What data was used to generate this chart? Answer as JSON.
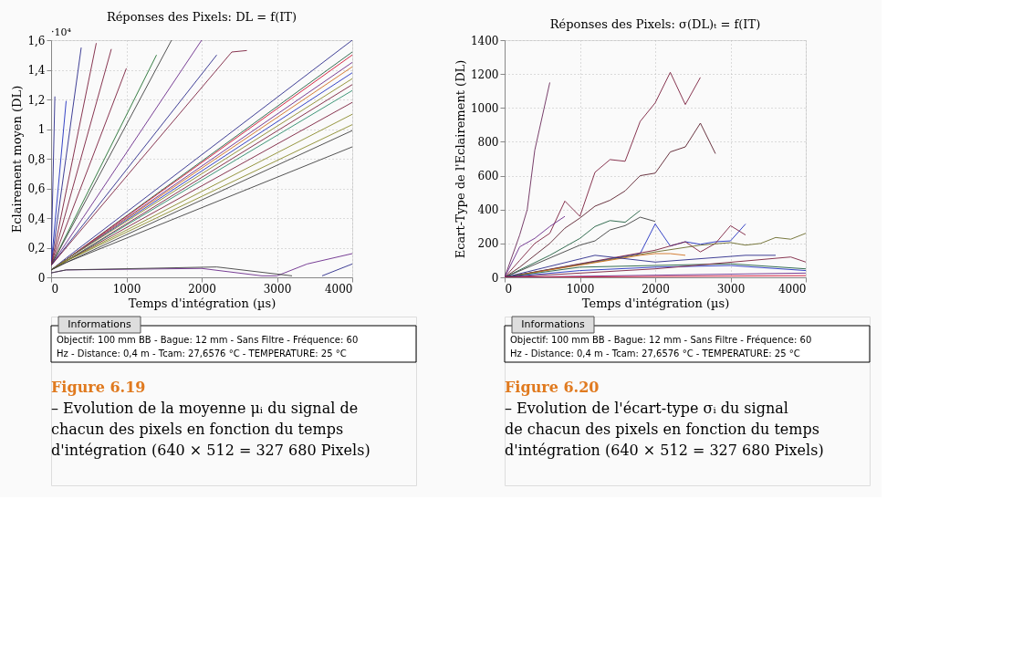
{
  "chart_data": [
    {
      "type": "line",
      "title": "Réponses des Pixels: DL = f(IT)",
      "xlabel": "Temps d'intégration (µs)",
      "ylabel": "Eclairement moyen (DL)",
      "xlim": [
        0,
        4000
      ],
      "xticks": [
        0,
        1000,
        2000,
        3000,
        4000
      ],
      "ylim": [
        0,
        1.6
      ],
      "yticks": [
        {
          "value": 0,
          "label": "0"
        },
        {
          "value": 0.2,
          "label": "0,2"
        },
        {
          "value": 0.4,
          "label": "0,4"
        },
        {
          "value": 0.6,
          "label": "0,6"
        },
        {
          "value": 0.8,
          "label": "0,8"
        },
        {
          "value": 1,
          "label": "1"
        },
        {
          "value": 1.2,
          "label": "1,2"
        },
        {
          "value": 1.4,
          "label": "1,4"
        },
        {
          "value": 1.6,
          "label": "1,6"
        }
      ],
      "grid": true,
      "line_style": "solid",
      "marker": "none",
      "legend": false,
      "annotations": [
        "·10⁴",
        "Informations",
        "Objectif: 100 mm BB - Bague: 12 mm - Sans Filtre - Fréquence: 60 Hz - Distance: 0,4 m - Tcam: 27,6576 °C - TEMPERATURE: 25 °C",
        "Figure 6.19",
        "– Evolution de la moyenne μᵢ du signal de chacun des pixels en fonction du temps d'intégration (640 × 512 = 327 680 Pixels)"
      ],
      "series": [
        {
          "color": "#2a2a8a",
          "x": [
            0,
            200,
            4000
          ],
          "values": [
            0.05,
            0.13,
            1.6
          ]
        },
        {
          "color": "#1f5f3f",
          "x": [
            0,
            200,
            4000
          ],
          "values": [
            0.05,
            0.12,
            1.52
          ]
        },
        {
          "color": "#d01030",
          "x": [
            0,
            200,
            4000
          ],
          "values": [
            0.05,
            0.12,
            1.5
          ]
        },
        {
          "color": "#6a2a8a",
          "x": [
            0,
            200,
            4000
          ],
          "values": [
            0.05,
            0.12,
            1.45
          ]
        },
        {
          "color": "#d07020",
          "x": [
            0,
            200,
            4000
          ],
          "values": [
            0.05,
            0.12,
            1.42
          ]
        },
        {
          "color": "#2030c0",
          "x": [
            0,
            200,
            4000
          ],
          "values": [
            0.05,
            0.12,
            1.38
          ]
        },
        {
          "color": "#8a8a2a",
          "x": [
            0,
            200,
            4000
          ],
          "values": [
            0.05,
            0.12,
            1.34
          ]
        },
        {
          "color": "#7a1f3d",
          "x": [
            0,
            200,
            4000
          ],
          "values": [
            0.05,
            0.11,
            1.3
          ]
        },
        {
          "color": "#2a8a6a",
          "x": [
            0,
            200,
            4000
          ],
          "values": [
            0.05,
            0.11,
            1.26
          ]
        },
        {
          "color": "#7a1f3d",
          "x": [
            0,
            200,
            4000
          ],
          "values": [
            0.05,
            0.11,
            1.18
          ]
        },
        {
          "color": "#8a8a2a",
          "x": [
            0,
            200,
            4000
          ],
          "values": [
            0.05,
            0.11,
            1.1
          ]
        },
        {
          "color": "#8a8a2a",
          "x": [
            0,
            200,
            4000
          ],
          "values": [
            0.05,
            0.11,
            1.03
          ]
        },
        {
          "color": "#404040",
          "x": [
            0,
            200,
            4000
          ],
          "values": [
            0.05,
            0.1,
            0.99
          ]
        },
        {
          "color": "#404040",
          "x": [
            0,
            200,
            4000
          ],
          "values": [
            0.05,
            0.1,
            0.88
          ]
        },
        {
          "color": "#2a2a8a",
          "x": [
            0,
            50
          ],
          "values": [
            0.1,
            1.22
          ]
        },
        {
          "color": "#2030c0",
          "x": [
            0,
            200
          ],
          "values": [
            0.08,
            1.19
          ]
        },
        {
          "color": "#2a2a8a",
          "x": [
            0,
            400
          ],
          "values": [
            0.08,
            1.55
          ]
        },
        {
          "color": "#7a1f3d",
          "x": [
            0,
            600
          ],
          "values": [
            0.08,
            1.58
          ]
        },
        {
          "color": "#7a1f3d",
          "x": [
            0,
            800
          ],
          "values": [
            0.08,
            1.54
          ]
        },
        {
          "color": "#7a1f3d",
          "x": [
            0,
            1000
          ],
          "values": [
            0.08,
            1.41
          ]
        },
        {
          "color": "#1f6f2f",
          "x": [
            0,
            1400
          ],
          "values": [
            0.08,
            1.5
          ]
        },
        {
          "color": "#404040",
          "x": [
            0,
            1600
          ],
          "values": [
            0.08,
            1.6
          ]
        },
        {
          "color": "#6a2a8a",
          "x": [
            0,
            2000
          ],
          "values": [
            0.08,
            1.6
          ]
        },
        {
          "color": "#2a2a8a",
          "x": [
            0,
            2200
          ],
          "values": [
            0.08,
            1.5
          ]
        },
        {
          "color": "#7a1f3d",
          "x": [
            0,
            2400,
            2600
          ],
          "values": [
            0.08,
            1.52,
            1.53
          ]
        },
        {
          "color": "#6a2a8a",
          "x": [
            0,
            200,
            2000,
            2800,
            3000,
            3400,
            4000
          ],
          "values": [
            0.03,
            0.05,
            0.06,
            0.01,
            0.01,
            0.09,
            0.16
          ]
        },
        {
          "color": "#404040",
          "x": [
            0,
            200,
            2200,
            3200
          ],
          "values": [
            0.03,
            0.05,
            0.07,
            0.01
          ]
        },
        {
          "color": "#2a2a8a",
          "x": [
            3600,
            4000
          ],
          "values": [
            0.01,
            0.09
          ]
        }
      ]
    },
    {
      "type": "line",
      "title": "Réponses des Pixels: σ(DL)ₜ = f(IT)",
      "xlabel": "Temps d'intégration (µs)",
      "ylabel": "Ecart-Type de l'Eclairement (DL)",
      "xlim": [
        0,
        4000
      ],
      "xticks": [
        0,
        1000,
        2000,
        3000,
        4000
      ],
      "ylim": [
        0,
        1400
      ],
      "yticks": [
        0,
        200,
        400,
        600,
        800,
        1000,
        1200,
        1400
      ],
      "grid": true,
      "line_style": "solid",
      "marker": "none",
      "legend": false,
      "annotations": [
        null,
        "Informations",
        "Objectif: 100 mm BB - Bague: 12 mm - Sans Filtre - Fréquence: 60 Hz - Distance: 0,4 m - Tcam: 27,6576 °C - TEMPERATURE: 25 °C",
        "Figure 6.20",
        "– Evolution de l'écart-type σᵢ du signal de chacun des pixels en fonction du temps d'intégration (640 × 512 = 327 680 Pixels)"
      ],
      "series": [
        {
          "color": "#6a2a5a",
          "x": [
            0,
            200,
            300,
            400,
            600
          ],
          "values": [
            0,
            250,
            400,
            750,
            1150
          ]
        },
        {
          "color": "#7a1f3d",
          "x": [
            0,
            200,
            400,
            600,
            800,
            1000,
            1200,
            1400,
            1600,
            1800,
            2000,
            2200,
            2400,
            2600
          ],
          "values": [
            0,
            100,
            200,
            260,
            450,
            360,
            620,
            695,
            685,
            920,
            1030,
            1210,
            1020,
            1180
          ]
        },
        {
          "color": "#5a1f2d",
          "x": [
            0,
            200,
            400,
            600,
            800,
            1000,
            1200,
            1400,
            1600,
            1800,
            2000,
            2200,
            2400,
            2600,
            2800
          ],
          "values": [
            0,
            60,
            130,
            200,
            290,
            350,
            420,
            455,
            510,
            600,
            615,
            740,
            770,
            910,
            730
          ]
        },
        {
          "color": "#1f5f3f",
          "x": [
            0,
            600,
            1000,
            1200,
            1400,
            1600,
            1800
          ],
          "values": [
            0,
            130,
            230,
            300,
            335,
            325,
            395
          ]
        },
        {
          "color": "#404040",
          "x": [
            0,
            1000,
            1200,
            1400,
            1600,
            1800,
            2000
          ],
          "values": [
            0,
            190,
            215,
            280,
            305,
            355,
            330
          ]
        },
        {
          "color": "#2030c0",
          "x": [
            0,
            1800,
            2000,
            2200,
            2400,
            2600,
            2800,
            3000,
            3200
          ],
          "values": [
            0,
            140,
            315,
            185,
            210,
            195,
            210,
            215,
            315
          ]
        },
        {
          "color": "#7a1f3d",
          "x": [
            0,
            2000,
            2400,
            2600,
            2800,
            3000,
            3200
          ],
          "values": [
            0,
            160,
            210,
            150,
            200,
            305,
            250
          ]
        },
        {
          "color": "#6a6a2a",
          "x": [
            0,
            2000,
            2600,
            3000,
            3200,
            3400,
            3600,
            3800,
            4000
          ],
          "values": [
            0,
            150,
            190,
            205,
            190,
            200,
            235,
            225,
            260
          ]
        },
        {
          "color": "#6a2a8a",
          "x": [
            0,
            200,
            400,
            600,
            800
          ],
          "values": [
            0,
            180,
            230,
            300,
            360
          ]
        },
        {
          "color": "#d07020",
          "x": [
            0,
            1800,
            2000,
            2200,
            2400
          ],
          "values": [
            0,
            130,
            140,
            140,
            130
          ]
        },
        {
          "color": "#2a2a8a",
          "x": [
            0,
            1200,
            2000,
            3200,
            3600
          ],
          "values": [
            0,
            130,
            90,
            130,
            130
          ]
        },
        {
          "color": "#1f5f3f",
          "x": [
            0,
            1000,
            2000,
            3000,
            4000
          ],
          "values": [
            0,
            60,
            70,
            80,
            50
          ]
        },
        {
          "color": "#2030c0",
          "x": [
            0,
            1000,
            2000,
            3000,
            4000
          ],
          "values": [
            0,
            40,
            60,
            70,
            40
          ]
        },
        {
          "color": "#7a1f3d",
          "x": [
            0,
            2000,
            3800,
            4000
          ],
          "values": [
            0,
            50,
            120,
            90
          ]
        },
        {
          "color": "#6a2a8a",
          "x": [
            0,
            4000
          ],
          "values": [
            0,
            25
          ]
        },
        {
          "color": "#d01030",
          "x": [
            0,
            4000
          ],
          "values": [
            0,
            10
          ]
        }
      ]
    }
  ]
}
